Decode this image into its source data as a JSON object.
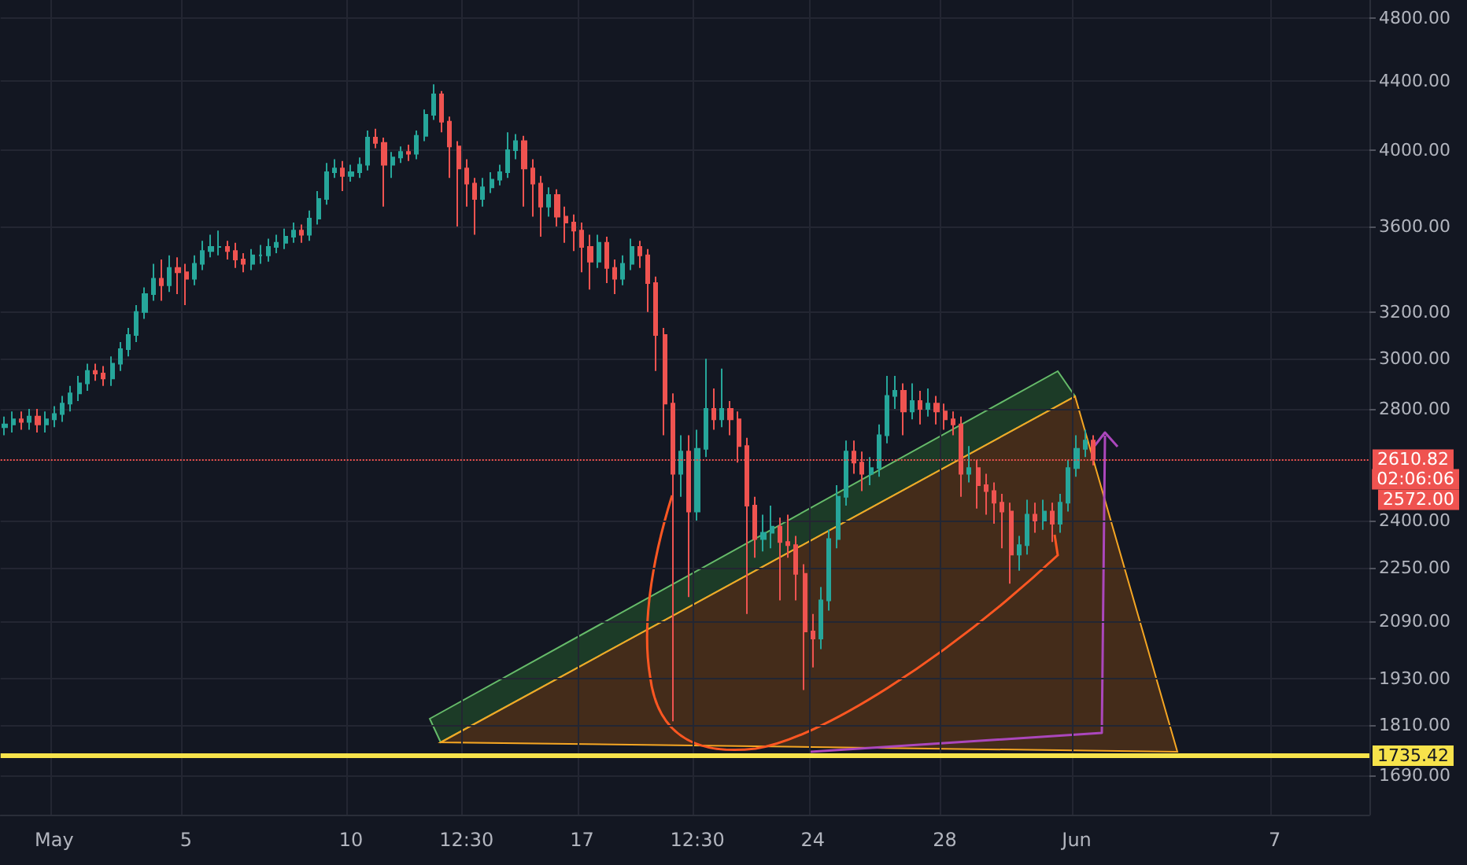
{
  "chart_data": {
    "type": "candlestick",
    "log": true,
    "grid": true,
    "categories": [
      null,
      null,
      null,
      null,
      null,
      null,
      "May",
      null,
      null,
      null,
      null,
      null,
      null,
      null,
      null,
      null,
      null,
      null,
      null,
      null,
      null,
      null,
      "5",
      null,
      null,
      null,
      null,
      null,
      null,
      null,
      null,
      null,
      null,
      null,
      null,
      null,
      null,
      null,
      null,
      null,
      null,
      null,
      "10",
      null,
      null,
      null,
      null,
      null,
      null,
      null,
      null,
      null,
      null,
      null,
      null,
      null,
      "12:30",
      null,
      null,
      null,
      null,
      null,
      null,
      null,
      null,
      null,
      null,
      null,
      null,
      null,
      "17",
      null,
      null,
      null,
      null,
      null,
      null,
      null,
      null,
      null,
      null,
      null,
      null,
      null,
      "12:30",
      null,
      null,
      null,
      null,
      null,
      null,
      null,
      null,
      null,
      null,
      null,
      null,
      null,
      "24",
      null,
      null,
      null,
      null,
      null,
      null,
      null,
      null,
      null,
      null,
      null,
      null,
      null,
      null,
      null,
      "28",
      null,
      null,
      null,
      null,
      null,
      null,
      null,
      null,
      null,
      null,
      null,
      null,
      null,
      null,
      null,
      "Jun",
      null,
      null,
      null,
      null,
      null,
      null,
      null,
      null,
      null,
      null,
      null,
      null,
      null,
      null,
      null,
      null,
      null,
      null,
      null,
      null,
      null,
      null,
      null,
      "7",
      null,
      null,
      null,
      null,
      null,
      null,
      null,
      null,
      null,
      null,
      null
    ],
    "ylim": [
      1600,
      4920
    ],
    "yticks": [
      {
        "value": 1690,
        "label": "1690.00"
      },
      {
        "value": 1810,
        "label": "1810.00"
      },
      {
        "value": 1930,
        "label": "1930.00"
      },
      {
        "value": 2090,
        "label": "2090.00"
      },
      {
        "value": 2250,
        "label": "2250.00"
      },
      {
        "value": 2400,
        "label": "2400.00"
      },
      {
        "value": 2800,
        "label": "2800.00"
      },
      {
        "value": 3000,
        "label": "3000.00"
      },
      {
        "value": 3200,
        "label": "3200.00"
      },
      {
        "value": 3600,
        "label": "3600.00"
      },
      {
        "value": 4000,
        "label": "4000.00"
      },
      {
        "value": 4400,
        "label": "4400.00"
      },
      {
        "value": 4800,
        "label": "4800.00"
      }
    ],
    "ohlc": [
      [
        2730,
        2770,
        2700,
        2740
      ],
      [
        2740,
        2790,
        2710,
        2760
      ],
      [
        2760,
        2790,
        2720,
        2750
      ],
      [
        2750,
        2800,
        2720,
        2770
      ],
      [
        2770,
        2800,
        2710,
        2740
      ],
      [
        2740,
        2790,
        2710,
        2760
      ],
      [
        2760,
        2810,
        2730,
        2780
      ],
      [
        2780,
        2850,
        2750,
        2820
      ],
      [
        2820,
        2890,
        2790,
        2860
      ],
      [
        2860,
        2930,
        2830,
        2900
      ],
      [
        2900,
        2980,
        2870,
        2950
      ],
      [
        2950,
        2980,
        2910,
        2940
      ],
      [
        2940,
        2970,
        2890,
        2920
      ],
      [
        2920,
        3010,
        2890,
        2980
      ],
      [
        2980,
        3070,
        2950,
        3040
      ],
      [
        3040,
        3130,
        3010,
        3100
      ],
      [
        3100,
        3230,
        3070,
        3200
      ],
      [
        3200,
        3310,
        3170,
        3280
      ],
      [
        3280,
        3420,
        3250,
        3350
      ],
      [
        3350,
        3440,
        3250,
        3320
      ],
      [
        3320,
        3460,
        3290,
        3400
      ],
      [
        3400,
        3450,
        3280,
        3380
      ],
      [
        3380,
        3420,
        3230,
        3350
      ],
      [
        3350,
        3460,
        3320,
        3420
      ],
      [
        3420,
        3530,
        3390,
        3480
      ],
      [
        3480,
        3560,
        3450,
        3500
      ],
      [
        3500,
        3580,
        3460,
        3500
      ],
      [
        3500,
        3530,
        3440,
        3480
      ],
      [
        3480,
        3520,
        3400,
        3440
      ],
      [
        3440,
        3470,
        3380,
        3420
      ],
      [
        3420,
        3490,
        3390,
        3460
      ],
      [
        3460,
        3510,
        3420,
        3460
      ],
      [
        3460,
        3540,
        3430,
        3500
      ],
      [
        3500,
        3560,
        3470,
        3520
      ],
      [
        3520,
        3590,
        3490,
        3550
      ],
      [
        3550,
        3620,
        3520,
        3580
      ],
      [
        3580,
        3610,
        3520,
        3560
      ],
      [
        3560,
        3680,
        3530,
        3640
      ],
      [
        3640,
        3780,
        3610,
        3740
      ],
      [
        3740,
        3930,
        3710,
        3880
      ],
      [
        3880,
        3950,
        3850,
        3900
      ],
      [
        3900,
        3940,
        3780,
        3860
      ],
      [
        3860,
        3920,
        3830,
        3880
      ],
      [
        3880,
        3960,
        3850,
        3920
      ],
      [
        3920,
        4110,
        3890,
        4070
      ],
      [
        4070,
        4120,
        4010,
        4040
      ],
      [
        4040,
        4070,
        3700,
        3920
      ],
      [
        3920,
        3990,
        3850,
        3960
      ],
      [
        3960,
        4020,
        3930,
        3990
      ],
      [
        3990,
        4030,
        3940,
        3980
      ],
      [
        3980,
        4110,
        3950,
        4080
      ],
      [
        4080,
        4230,
        4050,
        4200
      ],
      [
        4200,
        4380,
        4170,
        4320
      ],
      [
        4320,
        4340,
        4100,
        4160
      ],
      [
        4160,
        4190,
        3850,
        4020
      ],
      [
        4020,
        4050,
        3600,
        3900
      ],
      [
        3900,
        3950,
        3700,
        3820
      ],
      [
        3820,
        3850,
        3560,
        3740
      ],
      [
        3740,
        3850,
        3700,
        3800
      ],
      [
        3800,
        3880,
        3770,
        3840
      ],
      [
        3840,
        3920,
        3810,
        3880
      ],
      [
        3880,
        4100,
        3850,
        4000
      ],
      [
        4000,
        4090,
        3950,
        4050
      ],
      [
        4050,
        4080,
        3700,
        3900
      ],
      [
        3900,
        3950,
        3650,
        3820
      ],
      [
        3820,
        3860,
        3550,
        3700
      ],
      [
        3700,
        3800,
        3650,
        3760
      ],
      [
        3760,
        3790,
        3600,
        3650
      ],
      [
        3650,
        3700,
        3520,
        3620
      ],
      [
        3620,
        3660,
        3480,
        3580
      ],
      [
        3580,
        3620,
        3380,
        3500
      ],
      [
        3500,
        3560,
        3300,
        3430
      ],
      [
        3430,
        3560,
        3400,
        3520
      ],
      [
        3520,
        3550,
        3330,
        3400
      ],
      [
        3400,
        3440,
        3280,
        3350
      ],
      [
        3350,
        3460,
        3320,
        3420
      ],
      [
        3420,
        3540,
        3390,
        3500
      ],
      [
        3500,
        3530,
        3400,
        3460
      ],
      [
        3460,
        3490,
        3200,
        3330
      ],
      [
        3330,
        3360,
        2950,
        3100
      ],
      [
        3100,
        3130,
        2700,
        2820
      ],
      [
        2820,
        2860,
        1820,
        2560
      ],
      [
        2560,
        2700,
        2480,
        2640
      ],
      [
        2640,
        2700,
        2160,
        2430
      ],
      [
        2430,
        2720,
        2400,
        2650
      ],
      [
        2650,
        3000,
        2620,
        2800
      ],
      [
        2800,
        2880,
        2720,
        2760
      ],
      [
        2760,
        2960,
        2730,
        2800
      ],
      [
        2800,
        2830,
        2700,
        2760
      ],
      [
        2760,
        2790,
        2600,
        2660
      ],
      [
        2660,
        2690,
        2110,
        2450
      ],
      [
        2450,
        2480,
        2280,
        2340
      ],
      [
        2340,
        2420,
        2300,
        2360
      ],
      [
        2360,
        2450,
        2310,
        2380
      ],
      [
        2380,
        2410,
        2150,
        2330
      ],
      [
        2330,
        2420,
        2280,
        2320
      ],
      [
        2320,
        2350,
        2150,
        2230
      ],
      [
        2230,
        2260,
        1900,
        2060
      ],
      [
        2060,
        2110,
        1960,
        2040
      ],
      [
        2040,
        2190,
        2010,
        2150
      ],
      [
        2150,
        2370,
        2120,
        2340
      ],
      [
        2340,
        2520,
        2310,
        2480
      ],
      [
        2480,
        2680,
        2450,
        2640
      ],
      [
        2640,
        2680,
        2560,
        2600
      ],
      [
        2600,
        2640,
        2500,
        2560
      ],
      [
        2560,
        2620,
        2520,
        2580
      ],
      [
        2580,
        2740,
        2550,
        2700
      ],
      [
        2700,
        2930,
        2670,
        2850
      ],
      [
        2850,
        2930,
        2800,
        2870
      ],
      [
        2870,
        2900,
        2700,
        2790
      ],
      [
        2790,
        2900,
        2760,
        2830
      ],
      [
        2830,
        2870,
        2740,
        2800
      ],
      [
        2800,
        2880,
        2770,
        2820
      ],
      [
        2820,
        2850,
        2740,
        2790
      ],
      [
        2790,
        2820,
        2720,
        2760
      ],
      [
        2760,
        2790,
        2700,
        2740
      ],
      [
        2740,
        2770,
        2480,
        2560
      ],
      [
        2560,
        2660,
        2530,
        2580
      ],
      [
        2580,
        2610,
        2440,
        2520
      ],
      [
        2520,
        2560,
        2420,
        2500
      ],
      [
        2500,
        2530,
        2390,
        2460
      ],
      [
        2460,
        2490,
        2310,
        2430
      ],
      [
        2430,
        2460,
        2200,
        2290
      ],
      [
        2290,
        2350,
        2240,
        2320
      ],
      [
        2320,
        2470,
        2290,
        2420
      ],
      [
        2420,
        2460,
        2360,
        2400
      ],
      [
        2400,
        2470,
        2370,
        2430
      ],
      [
        2430,
        2460,
        2330,
        2390
      ],
      [
        2390,
        2490,
        2360,
        2460
      ],
      [
        2460,
        2610,
        2430,
        2580
      ],
      [
        2580,
        2700,
        2550,
        2650
      ],
      [
        2650,
        2720,
        2620,
        2680
      ],
      [
        2680,
        2700,
        2590,
        2610
      ],
      null,
      null,
      null,
      null,
      null,
      null,
      null,
      null,
      null,
      null,
      null,
      null,
      null,
      null,
      null,
      null,
      null,
      null,
      null,
      null,
      null,
      null,
      null,
      null,
      null,
      null,
      null,
      null,
      null,
      null,
      null,
      null,
      null
    ],
    "colors": [
      "#26a69a",
      "#26a69a",
      "#ef5350",
      "#26a69a",
      "#ef5350",
      "#26a69a",
      "#26a69a",
      "#26a69a",
      "#26a69a",
      "#26a69a",
      "#26a69a",
      "#ef5350",
      "#ef5350",
      "#26a69a",
      "#26a69a",
      "#26a69a",
      "#26a69a",
      "#26a69a",
      "#26a69a",
      "#ef5350",
      "#26a69a",
      "#ef5350",
      "#ef5350",
      "#26a69a",
      "#26a69a",
      "#26a69a",
      "#26a69a",
      "#ef5350",
      "#ef5350",
      "#ef5350",
      "#26a69a",
      "#26a69a",
      "#26a69a",
      "#26a69a",
      "#26a69a",
      "#26a69a",
      "#ef5350",
      "#26a69a",
      "#26a69a",
      "#26a69a",
      "#26a69a",
      "#ef5350",
      "#26a69a",
      "#26a69a",
      "#26a69a",
      "#ef5350",
      "#ef5350",
      "#26a69a",
      "#26a69a",
      "#ef5350",
      "#26a69a",
      "#26a69a",
      "#26a69a",
      "#ef5350",
      "#ef5350",
      "#ef5350",
      "#ef5350",
      "#ef5350",
      "#26a69a",
      "#26a69a",
      "#26a69a",
      "#26a69a",
      "#26a69a",
      "#ef5350",
      "#ef5350",
      "#ef5350",
      "#26a69a",
      "#ef5350",
      "#ef5350",
      "#ef5350",
      "#ef5350",
      "#ef5350",
      "#26a69a",
      "#ef5350",
      "#ef5350",
      "#26a69a",
      "#26a69a",
      "#ef5350",
      "#ef5350",
      "#ef5350",
      "#ef5350",
      "#ef5350",
      "#26a69a",
      "#ef5350",
      "#26a69a",
      "#26a69a",
      "#ef5350",
      "#26a69a",
      "#ef5350",
      "#ef5350",
      "#ef5350",
      "#ef5350",
      "#26a69a",
      "#26a69a",
      "#ef5350",
      "#ef5350",
      "#ef5350",
      "#ef5350",
      "#ef5350",
      "#26a69a",
      "#26a69a",
      "#26a69a",
      "#26a69a",
      "#ef5350",
      "#ef5350",
      "#26a69a",
      "#26a69a",
      "#26a69a",
      "#26a69a",
      "#ef5350",
      "#26a69a",
      "#ef5350",
      "#26a69a",
      "#ef5350",
      "#ef5350",
      "#ef5350",
      "#ef5350",
      "#26a69a",
      "#ef5350",
      "#ef5350",
      "#ef5350",
      "#ef5350",
      "#ef5350",
      "#26a69a",
      "#26a69a",
      "#ef5350",
      "#26a69a",
      "#ef5350",
      "#26a69a",
      "#26a69a",
      "#26a69a",
      "#26a69a",
      "#ef5350",
      null,
      null,
      null,
      null,
      null,
      null,
      null,
      null,
      null,
      null,
      null,
      null,
      null,
      null,
      null,
      null,
      null,
      null,
      null,
      null,
      null,
      null,
      null,
      null,
      null,
      null,
      null,
      null,
      null,
      null,
      null,
      null,
      null
    ],
    "ref_lines": [
      {
        "axis": "y",
        "value": 2610.82,
        "label": "2610.82",
        "color": "#ef5350",
        "line_style": "dotted"
      },
      {
        "axis": "y",
        "value": 1735.42,
        "label": "1735.42",
        "color": "#f7e34b",
        "line_style": "solid"
      }
    ],
    "annotations": [
      "02:06:06",
      "2572.00"
    ]
  }
}
